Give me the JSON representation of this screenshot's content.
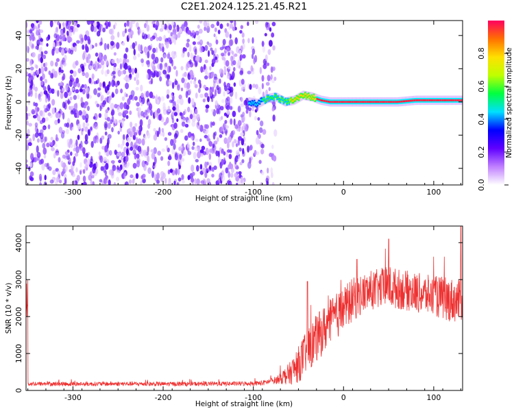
{
  "title": "C2E1.2024.125.21.45.R21",
  "chart_data": [
    {
      "type": "heatmap",
      "xlabel": "Height of straight line (km)",
      "ylabel": "Frequency (Hz)",
      "xlim": [
        -352,
        132
      ],
      "ylim": [
        -50,
        49
      ],
      "xticks": [
        -300,
        -200,
        -100,
        0,
        100
      ],
      "yticks": [
        -40,
        -20,
        0,
        20,
        40
      ],
      "colorbar": {
        "label": "Normalized spectral amplitude",
        "range": [
          0,
          1
        ],
        "ticks": [
          "0.0",
          "0.2",
          "0.4",
          "0.6",
          "0.8"
        ],
        "colormap": [
          "#ffffff",
          "#c080ff",
          "#6000ff",
          "#0000ff",
          "#00e0ff",
          "#00ff40",
          "#c0ff00",
          "#ffe000",
          "#ff7000",
          "#ff0060"
        ]
      },
      "description_values": {
        "noise_region_x": [
          -352,
          -75
        ],
        "signal_track": [
          [
            -105,
            0
          ],
          [
            -95,
            -1
          ],
          [
            -85,
            2
          ],
          [
            -75,
            3
          ],
          [
            -65,
            0
          ],
          [
            -55,
            1
          ],
          [
            -45,
            4
          ],
          [
            -35,
            3
          ],
          [
            -25,
            1
          ],
          [
            -15,
            0
          ],
          [
            0,
            0
          ],
          [
            40,
            0
          ],
          [
            60,
            0
          ],
          [
            80,
            1
          ],
          [
            100,
            1
          ],
          [
            132,
            1
          ]
        ]
      }
    },
    {
      "type": "line",
      "xlabel": "Height of straight line (km)",
      "ylabel": "SNR (10 * v/v)",
      "xlim": [
        -352,
        132
      ],
      "ylim": [
        0,
        4450
      ],
      "xticks": [
        -300,
        -200,
        -100,
        0,
        100
      ],
      "yticks": [
        0,
        1000,
        2000,
        3000,
        4000
      ],
      "color": "#ee3030",
      "series": [
        {
          "x": [
            -350,
            -300,
            -250,
            -200,
            -150,
            -110,
            -90,
            -75,
            -60,
            -50,
            -40,
            -30,
            -20,
            -10,
            0,
            10,
            20,
            30,
            40,
            50,
            60,
            70,
            80,
            90,
            100,
            110,
            120,
            130
          ],
          "values": [
            180,
            175,
            180,
            175,
            180,
            185,
            200,
            280,
            450,
            700,
            1100,
            1400,
            1700,
            1950,
            2200,
            2450,
            2600,
            2700,
            2750,
            2800,
            2750,
            2700,
            2650,
            2600,
            2550,
            2500,
            2450,
            2400
          ],
          "spread": [
            60,
            60,
            60,
            60,
            60,
            60,
            70,
            100,
            300,
            500,
            600,
            650,
            650,
            650,
            600,
            600,
            550,
            550,
            550,
            600,
            550,
            550,
            550,
            550,
            550,
            600,
            600,
            600
          ],
          "peaks": [
            [
              15,
              3550
            ],
            [
              50,
              4100
            ],
            [
              -40,
              2950
            ],
            [
              130,
              4450
            ]
          ]
        }
      ]
    }
  ]
}
